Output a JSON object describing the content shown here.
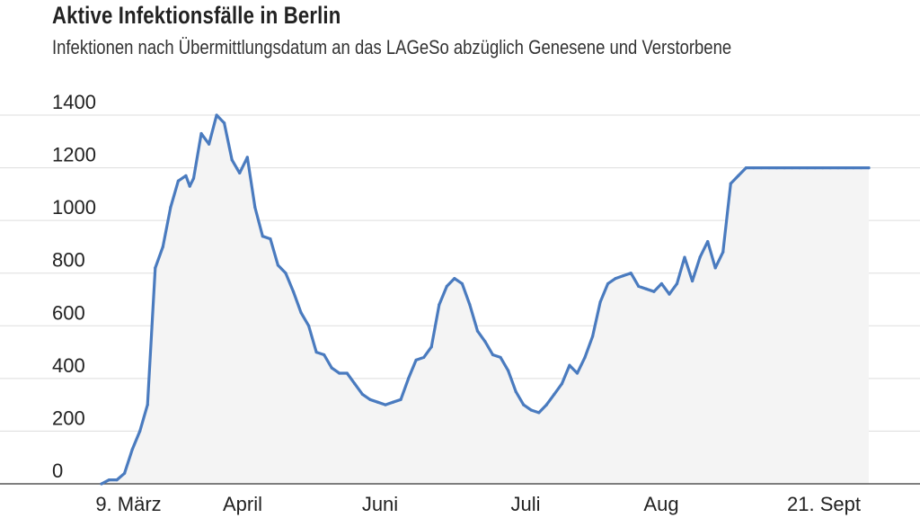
{
  "title": "Aktive Infektionsfälle in Berlin",
  "subtitle": "Infektionen nach Übermittlungsdatum an das LAGeSo abzüglich Genesene und Verstorbene",
  "colors": {
    "line": "#4a7bbf",
    "area": "#f4f4f4",
    "grid": "#dddddd",
    "axis": "#555555"
  },
  "chart_data": {
    "type": "area",
    "title": "Aktive Infektionsfälle in Berlin",
    "subtitle": "Infektionen nach Übermittlungsdatum an das LAGeSo abzüglich Genesene und Verstorbene",
    "xlabel": "",
    "ylabel": "",
    "ylim": [
      0,
      1400
    ],
    "yticks": [
      0,
      200,
      400,
      600,
      800,
      1000,
      1200,
      1400
    ],
    "xticks": [
      "9. März",
      "April",
      "Juni",
      "Juli",
      "Aug",
      "21. Sept"
    ],
    "grid": true,
    "series": [
      {
        "x": [
          "2020-03-09",
          "2020-03-11",
          "2020-03-13",
          "2020-03-15",
          "2020-03-17",
          "2020-03-19",
          "2020-03-21",
          "2020-03-23",
          "2020-03-25",
          "2020-03-27",
          "2020-03-29",
          "2020-03-31",
          "2020-04-01",
          "2020-04-02",
          "2020-04-04",
          "2020-04-06",
          "2020-04-08",
          "2020-04-10",
          "2020-04-12",
          "2020-04-14",
          "2020-04-16",
          "2020-04-18",
          "2020-04-20",
          "2020-04-22",
          "2020-04-24",
          "2020-04-26",
          "2020-04-28",
          "2020-04-30",
          "2020-05-02",
          "2020-05-04",
          "2020-05-06",
          "2020-05-08",
          "2020-05-10",
          "2020-05-12",
          "2020-05-14",
          "2020-05-16",
          "2020-05-18",
          "2020-05-20",
          "2020-05-22",
          "2020-05-24",
          "2020-05-26",
          "2020-05-28",
          "2020-05-30",
          "2020-06-01",
          "2020-06-03",
          "2020-06-05",
          "2020-06-07",
          "2020-06-09",
          "2020-06-11",
          "2020-06-13",
          "2020-06-15",
          "2020-06-17",
          "2020-06-19",
          "2020-06-21",
          "2020-06-23",
          "2020-06-25",
          "2020-06-27",
          "2020-06-29",
          "2020-07-01",
          "2020-07-03",
          "2020-07-05",
          "2020-07-07",
          "2020-07-09",
          "2020-07-11",
          "2020-07-13",
          "2020-07-15",
          "2020-07-17",
          "2020-07-19",
          "2020-07-21",
          "2020-07-23",
          "2020-07-25",
          "2020-07-27",
          "2020-07-29",
          "2020-07-31",
          "2020-08-02",
          "2020-08-04",
          "2020-08-06",
          "2020-08-08",
          "2020-08-10",
          "2020-08-12",
          "2020-08-14",
          "2020-08-16",
          "2020-08-18",
          "2020-08-20",
          "2020-08-22",
          "2020-08-24",
          "2020-08-26",
          "2020-08-28",
          "2020-08-30",
          "2020-09-01",
          "2020-09-03",
          "2020-09-05",
          "2020-09-07",
          "2020-09-09",
          "2020-09-11",
          "2020-09-13",
          "2020-09-15",
          "2020-09-17",
          "2020-09-19",
          "2020-09-21",
          "2020-09-23",
          "2020-09-25"
        ],
        "values": [
          0,
          15,
          15,
          40,
          130,
          200,
          300,
          820,
          900,
          1050,
          1150,
          1170,
          1130,
          1160,
          1330,
          1290,
          1400,
          1370,
          1230,
          1180,
          1240,
          1050,
          940,
          930,
          830,
          800,
          730,
          650,
          600,
          500,
          490,
          440,
          420,
          420,
          380,
          340,
          320,
          310,
          300,
          310,
          320,
          400,
          470,
          480,
          520,
          680,
          750,
          780,
          760,
          680,
          580,
          540,
          490,
          480,
          430,
          350,
          300,
          280,
          270,
          300,
          340,
          380,
          450,
          420,
          480,
          560,
          690,
          760,
          780,
          790,
          800,
          750,
          740,
          730,
          760,
          720,
          760,
          860,
          770,
          860,
          920,
          820,
          880,
          1140,
          1170,
          1200,
          1200,
          1200,
          1200,
          1200,
          1200,
          1200,
          1200,
          1200,
          1200,
          1200,
          1200,
          1200,
          1200,
          1200,
          1200,
          1200
        ]
      }
    ]
  }
}
